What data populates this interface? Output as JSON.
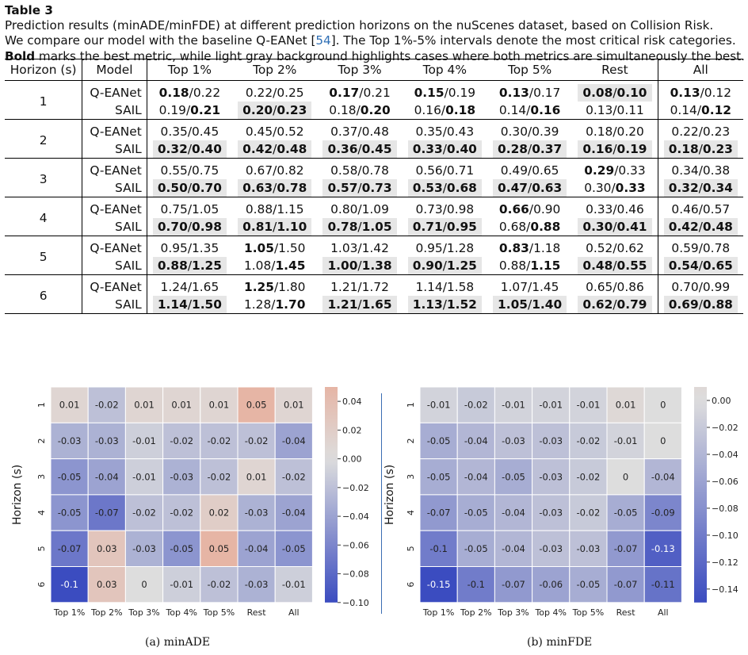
{
  "caption": {
    "title": "Table 3",
    "line1": "Prediction results (minADE/minFDE) at different prediction horizons on the nuScenes dataset, based on Collision Risk.",
    "line2_pre": "We compare our model with the baseline Q-EANet [",
    "line2_ref": "54",
    "line2_post": "]. The Top 1%-5% intervals denote the most critical risk categories.",
    "line3_bold": "Bold",
    "line3_rest": " marks the best metric, while light gray background highlights cases where both metrics are simultaneously the best."
  },
  "table": {
    "headers": [
      "Horizon (s)",
      "Model",
      "Top 1%",
      "Top 2%",
      "Top 3%",
      "Top 4%",
      "Top 5%",
      "Rest",
      "All"
    ],
    "groups": [
      {
        "horizon": "1",
        "rows": [
          {
            "model": "Q-EANet",
            "cells": [
              [
                "0.18",
                "0.22",
                "b",
                "",
                0
              ],
              [
                "0.22",
                "0.25",
                "",
                "",
                0
              ],
              [
                "0.17",
                "0.21",
                "b",
                "",
                0
              ],
              [
                "0.15",
                "0.19",
                "b",
                "",
                0
              ],
              [
                "0.13",
                "0.17",
                "b",
                "",
                0
              ],
              [
                "0.08",
                "0.10",
                "b",
                "b",
                1
              ],
              [
                "0.13",
                "0.12",
                "b",
                "",
                0
              ]
            ]
          },
          {
            "model": "SAIL",
            "cells": [
              [
                "0.19",
                "0.21",
                "",
                "b",
                0
              ],
              [
                "0.20",
                "0.23",
                "b",
                "b",
                1
              ],
              [
                "0.18",
                "0.20",
                "",
                "b",
                0
              ],
              [
                "0.16",
                "0.18",
                "",
                "b",
                0
              ],
              [
                "0.14",
                "0.16",
                "",
                "b",
                0
              ],
              [
                "0.13",
                "0.11",
                "",
                "",
                0
              ],
              [
                "0.14",
                "0.12",
                "",
                "b",
                0
              ]
            ]
          }
        ]
      },
      {
        "horizon": "2",
        "rows": [
          {
            "model": "Q-EANet",
            "cells": [
              [
                "0.35",
                "0.45",
                "",
                "",
                0
              ],
              [
                "0.45",
                "0.52",
                "",
                "",
                0
              ],
              [
                "0.37",
                "0.48",
                "",
                "",
                0
              ],
              [
                "0.35",
                "0.43",
                "",
                "",
                0
              ],
              [
                "0.30",
                "0.39",
                "",
                "",
                0
              ],
              [
                "0.18",
                "0.20",
                "",
                "",
                0
              ],
              [
                "0.22",
                "0.23",
                "",
                "",
                0
              ]
            ]
          },
          {
            "model": "SAIL",
            "cells": [
              [
                "0.32",
                "0.40",
                "b",
                "b",
                1
              ],
              [
                "0.42",
                "0.48",
                "b",
                "b",
                1
              ],
              [
                "0.36",
                "0.45",
                "b",
                "b",
                1
              ],
              [
                "0.33",
                "0.40",
                "b",
                "b",
                1
              ],
              [
                "0.28",
                "0.37",
                "b",
                "b",
                1
              ],
              [
                "0.16",
                "0.19",
                "b",
                "b",
                1
              ],
              [
                "0.18",
                "0.23",
                "b",
                "b",
                1
              ]
            ]
          }
        ]
      },
      {
        "horizon": "3",
        "rows": [
          {
            "model": "Q-EANet",
            "cells": [
              [
                "0.55",
                "0.75",
                "",
                "",
                0
              ],
              [
                "0.67",
                "0.82",
                "",
                "",
                0
              ],
              [
                "0.58",
                "0.78",
                "",
                "",
                0
              ],
              [
                "0.56",
                "0.71",
                "",
                "",
                0
              ],
              [
                "0.49",
                "0.65",
                "",
                "",
                0
              ],
              [
                "0.29",
                "0.33",
                "b",
                "",
                0
              ],
              [
                "0.34",
                "0.38",
                "",
                "",
                0
              ]
            ]
          },
          {
            "model": "SAIL",
            "cells": [
              [
                "0.50",
                "0.70",
                "b",
                "b",
                1
              ],
              [
                "0.63",
                "0.78",
                "b",
                "b",
                1
              ],
              [
                "0.57",
                "0.73",
                "b",
                "b",
                1
              ],
              [
                "0.53",
                "0.68",
                "b",
                "b",
                1
              ],
              [
                "0.47",
                "0.63",
                "b",
                "b",
                1
              ],
              [
                "0.30",
                "0.33",
                "",
                "b",
                0
              ],
              [
                "0.32",
                "0.34",
                "b",
                "b",
                1
              ]
            ]
          }
        ]
      },
      {
        "horizon": "4",
        "rows": [
          {
            "model": "Q-EANet",
            "cells": [
              [
                "0.75",
                "1.05",
                "",
                "",
                0
              ],
              [
                "0.88",
                "1.15",
                "",
                "",
                0
              ],
              [
                "0.80",
                "1.09",
                "",
                "",
                0
              ],
              [
                "0.73",
                "0.98",
                "",
                "",
                0
              ],
              [
                "0.66",
                "0.90",
                "b",
                "",
                0
              ],
              [
                "0.33",
                "0.46",
                "",
                "",
                0
              ],
              [
                "0.46",
                "0.57",
                "",
                "",
                0
              ]
            ]
          },
          {
            "model": "SAIL",
            "cells": [
              [
                "0.70",
                "0.98",
                "b",
                "b",
                1
              ],
              [
                "0.81",
                "1.10",
                "b",
                "b",
                1
              ],
              [
                "0.78",
                "1.05",
                "b",
                "b",
                1
              ],
              [
                "0.71",
                "0.95",
                "b",
                "b",
                1
              ],
              [
                "0.68",
                "0.88",
                "",
                "b",
                0
              ],
              [
                "0.30",
                "0.41",
                "b",
                "b",
                1
              ],
              [
                "0.42",
                "0.48",
                "b",
                "b",
                1
              ]
            ]
          }
        ]
      },
      {
        "horizon": "5",
        "rows": [
          {
            "model": "Q-EANet",
            "cells": [
              [
                "0.95",
                "1.35",
                "",
                "",
                0
              ],
              [
                "1.05",
                "1.50",
                "b",
                "",
                0
              ],
              [
                "1.03",
                "1.42",
                "",
                "",
                0
              ],
              [
                "0.95",
                "1.28",
                "",
                "",
                0
              ],
              [
                "0.83",
                "1.18",
                "b",
                "",
                0
              ],
              [
                "0.52",
                "0.62",
                "",
                "",
                0
              ],
              [
                "0.59",
                "0.78",
                "",
                "",
                0
              ]
            ]
          },
          {
            "model": "SAIL",
            "cells": [
              [
                "0.88",
                "1.25",
                "b",
                "b",
                1
              ],
              [
                "1.08",
                "1.45",
                "",
                "b",
                0
              ],
              [
                "1.00",
                "1.38",
                "b",
                "b",
                1
              ],
              [
                "0.90",
                "1.25",
                "b",
                "b",
                1
              ],
              [
                "0.88",
                "1.15",
                "",
                "b",
                0
              ],
              [
                "0.48",
                "0.55",
                "b",
                "b",
                1
              ],
              [
                "0.54",
                "0.65",
                "b",
                "b",
                1
              ]
            ]
          }
        ]
      },
      {
        "horizon": "6",
        "rows": [
          {
            "model": "Q-EANet",
            "cells": [
              [
                "1.24",
                "1.65",
                "",
                "",
                0
              ],
              [
                "1.25",
                "1.80",
                "b",
                "",
                0
              ],
              [
                "1.21",
                "1.72",
                "",
                "",
                0
              ],
              [
                "1.14",
                "1.58",
                "",
                "",
                0
              ],
              [
                "1.07",
                "1.45",
                "",
                "",
                0
              ],
              [
                "0.65",
                "0.86",
                "",
                "",
                0
              ],
              [
                "0.70",
                "0.99",
                "",
                "",
                0
              ]
            ]
          },
          {
            "model": "SAIL",
            "cells": [
              [
                "1.14",
                "1.50",
                "b",
                "b",
                1
              ],
              [
                "1.28",
                "1.70",
                "",
                "b",
                0
              ],
              [
                "1.21",
                "1.65",
                "b",
                "b",
                1
              ],
              [
                "1.13",
                "1.52",
                "b",
                "b",
                1
              ],
              [
                "1.05",
                "1.40",
                "b",
                "b",
                1
              ],
              [
                "0.62",
                "0.79",
                "b",
                "b",
                1
              ],
              [
                "0.69",
                "0.88",
                "b",
                "b",
                1
              ]
            ]
          }
        ]
      }
    ]
  },
  "chart_data": [
    {
      "type": "heatmap",
      "caption": "(a) minADE",
      "ylabel": "Horizon (s)",
      "x": [
        "Top 1%",
        "Top 2%",
        "Top 3%",
        "Top 4%",
        "Top 5%",
        "Rest",
        "All"
      ],
      "y": [
        "1",
        "2",
        "3",
        "4",
        "5",
        "6"
      ],
      "values": [
        [
          0.01,
          -0.02,
          0.01,
          0.01,
          0.01,
          0.05,
          0.01
        ],
        [
          -0.03,
          -0.03,
          -0.01,
          -0.02,
          -0.02,
          -0.02,
          -0.04
        ],
        [
          -0.05,
          -0.04,
          -0.01,
          -0.03,
          -0.02,
          0.01,
          -0.02
        ],
        [
          -0.05,
          -0.07,
          -0.02,
          -0.02,
          0.02,
          -0.03,
          -0.04
        ],
        [
          -0.07,
          0.03,
          -0.03,
          -0.05,
          0.05,
          -0.04,
          -0.05
        ],
        [
          -0.1,
          0.03,
          0,
          -0.01,
          -0.02,
          -0.03,
          -0.01
        ]
      ],
      "vmin": -0.1,
      "vmax": 0.05,
      "colorbar_ticks": [
        "0.04",
        "0.02",
        "0.00",
        "−0.02",
        "−0.04",
        "−0.06",
        "−0.08",
        "−0.10"
      ],
      "colorbar_tick_values": [
        0.04,
        0.02,
        0.0,
        -0.02,
        -0.04,
        -0.06,
        -0.08,
        -0.1
      ]
    },
    {
      "type": "heatmap",
      "caption": "(b) minFDE",
      "ylabel": "Horizon (s)",
      "x": [
        "Top 1%",
        "Top 2%",
        "Top 3%",
        "Top 4%",
        "Top 5%",
        "Rest",
        "All"
      ],
      "y": [
        "1",
        "2",
        "3",
        "4",
        "5",
        "6"
      ],
      "values": [
        [
          -0.01,
          -0.02,
          -0.01,
          -0.01,
          -0.01,
          0.01,
          0
        ],
        [
          -0.05,
          -0.04,
          -0.03,
          -0.03,
          -0.02,
          -0.01,
          0
        ],
        [
          -0.05,
          -0.04,
          -0.05,
          -0.03,
          -0.02,
          0,
          -0.04
        ],
        [
          -0.07,
          -0.05,
          -0.04,
          -0.03,
          -0.02,
          -0.05,
          -0.09
        ],
        [
          -0.1,
          -0.05,
          -0.04,
          -0.03,
          -0.03,
          -0.07,
          -0.13
        ],
        [
          -0.15,
          -0.1,
          -0.07,
          -0.06,
          -0.05,
          -0.07,
          -0.11
        ]
      ],
      "vmin": -0.15,
      "vmax": 0.01,
      "colorbar_ticks": [
        "0.00",
        "−0.02",
        "−0.04",
        "−0.06",
        "−0.08",
        "−0.10",
        "−0.12",
        "−0.14"
      ],
      "colorbar_tick_values": [
        0.0,
        -0.02,
        -0.04,
        -0.06,
        -0.08,
        -0.1,
        -0.12,
        -0.14
      ]
    }
  ]
}
